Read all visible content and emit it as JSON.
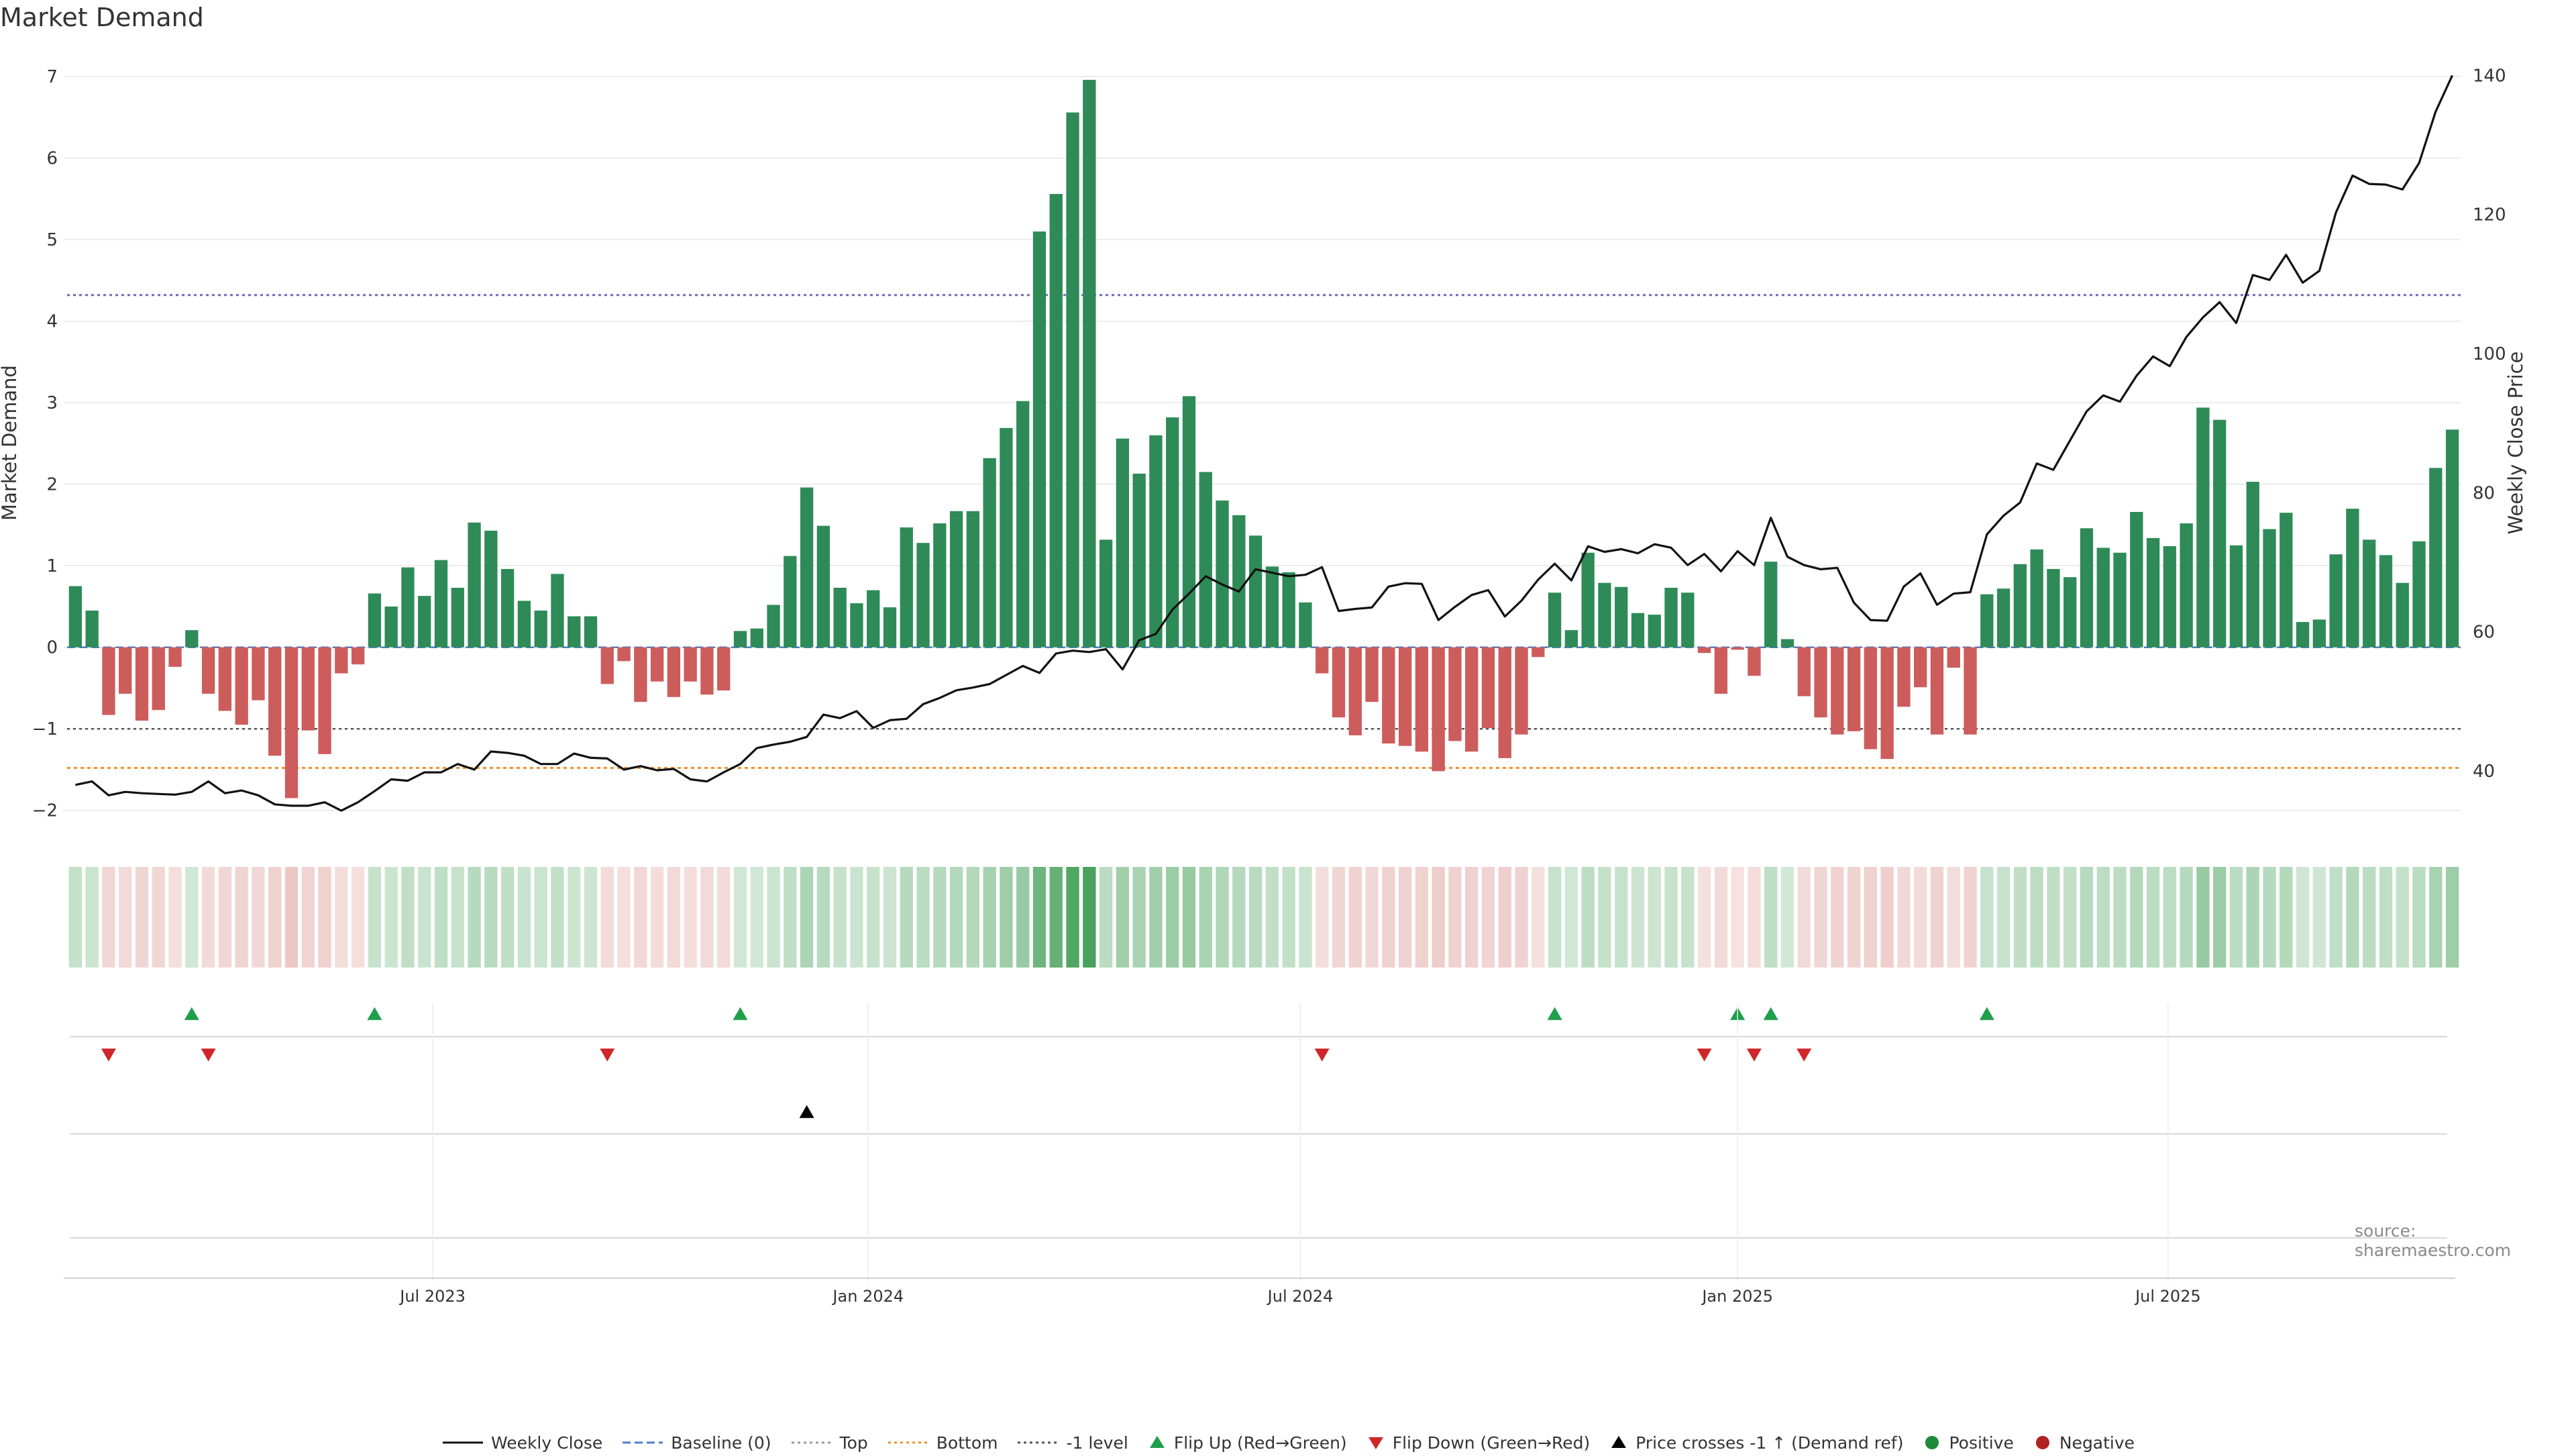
{
  "title": "Market Demand",
  "source": "source: sharemaestro.com",
  "chart_data": {
    "type": "bar",
    "y_left_label": "Market Demand",
    "y_right_label": "Weekly Close Price",
    "y_left_ticks": [
      "−2",
      "−1",
      "0",
      "1",
      "2",
      "3",
      "4",
      "5",
      "6",
      "7"
    ],
    "y_left_tick_values": [
      -2,
      -1,
      0,
      1,
      2,
      3,
      4,
      5,
      6,
      7
    ],
    "y_right_ticks": [
      "40",
      "60",
      "80",
      "100",
      "120",
      "140"
    ],
    "y_right_tick_values": [
      40,
      60,
      80,
      100,
      120,
      140
    ],
    "ylim_left": [
      -2.2,
      7.1
    ],
    "ylim_right": [
      32,
      141
    ],
    "date_ticks": [
      "Jul 2023",
      "Jan 2024",
      "Jul 2024",
      "Jan 2025",
      "Jul 2025"
    ],
    "date_tick_weeks": [
      21.5,
      47.7,
      73.7,
      100.0,
      125.9
    ],
    "reference_lines": {
      "top": 4.32,
      "bottom": -1.48,
      "minus_one": -1.0,
      "baseline": 0
    },
    "demand": [
      0.75,
      0.45,
      -0.83,
      -0.57,
      -0.9,
      -0.77,
      -0.24,
      0.21,
      -0.57,
      -0.78,
      -0.95,
      -0.65,
      -1.33,
      -1.85,
      -1.02,
      -1.31,
      -0.32,
      -0.21,
      0.66,
      0.5,
      0.98,
      0.63,
      1.07,
      0.73,
      1.53,
      1.43,
      0.96,
      0.57,
      0.45,
      0.9,
      0.38,
      0.38,
      -0.45,
      -0.17,
      -0.67,
      -0.42,
      -0.61,
      -0.42,
      -0.58,
      -0.53,
      0.2,
      0.23,
      0.52,
      1.12,
      1.96,
      1.49,
      0.73,
      0.54,
      0.7,
      0.49,
      1.47,
      1.28,
      1.52,
      1.67,
      1.67,
      2.32,
      2.69,
      3.02,
      5.1,
      5.56,
      6.56,
      6.96,
      1.32,
      2.56,
      2.13,
      2.6,
      2.82,
      3.08,
      2.15,
      1.8,
      1.62,
      1.37,
      0.99,
      0.92,
      0.55,
      -0.32,
      -0.86,
      -1.08,
      -0.67,
      -1.18,
      -1.21,
      -1.28,
      -1.52,
      -1.15,
      -1.28,
      -0.99,
      -1.36,
      -1.07,
      -0.12,
      0.67,
      0.21,
      1.16,
      0.79,
      0.74,
      0.42,
      0.4,
      0.73,
      0.67,
      -0.07,
      -0.57,
      -0.03,
      -0.35,
      1.05,
      0.1,
      -0.6,
      -0.86,
      -1.07,
      -1.03,
      -1.25,
      -1.37,
      -0.73,
      -0.49,
      -1.07,
      -0.25,
      -1.07,
      0.65,
      0.72,
      1.02,
      1.2,
      0.96,
      0.86,
      1.46,
      1.22,
      1.16,
      1.66,
      1.34,
      1.24,
      1.52,
      2.94,
      2.79,
      1.25,
      2.03,
      1.45,
      1.65,
      0.31,
      0.34,
      1.14,
      1.7,
      1.32,
      1.13,
      0.79,
      1.3,
      2.2,
      2.67
    ],
    "weekly_close": [
      38,
      38.5,
      36.5,
      37,
      36.8,
      36.7,
      36.6,
      37,
      38.5,
      36.8,
      37.2,
      36.5,
      35.2,
      35,
      35,
      35.5,
      34.3,
      35.5,
      37.1,
      38.8,
      38.6,
      39.8,
      39.8,
      41,
      40.2,
      42.8,
      42.6,
      42.2,
      41,
      41,
      42.5,
      41.9,
      41.8,
      40.2,
      40.7,
      40.1,
      40.3,
      38.8,
      38.5,
      39.8,
      41,
      43.3,
      43.8,
      44.2,
      44.9,
      48.1,
      47.6,
      48.6,
      46.2,
      47.3,
      47.5,
      49.6,
      50.5,
      51.6,
      52,
      52.5,
      53.8,
      55.1,
      54.1,
      56.9,
      57.3,
      57.1,
      57.5,
      54.6,
      58.8,
      59.7,
      63.2,
      65.5,
      68,
      66.8,
      65.8,
      69,
      68.5,
      68,
      68.2,
      69.3,
      63,
      63.3,
      63.5,
      66.5,
      67,
      66.9,
      61.7,
      63.6,
      65.3,
      66,
      62.2,
      64.5,
      67.5,
      69.8,
      67.4,
      72.3,
      71.5,
      71.9,
      71.3,
      72.6,
      72.1,
      69.6,
      71.2,
      68.7,
      71.6,
      69.6,
      76.4,
      70.8,
      69.6,
      69,
      69.2,
      64.2,
      61.7,
      61.6,
      66.5,
      68.4,
      63.9,
      65.5,
      65.7,
      74,
      76.7,
      78.6,
      84.2,
      83.3,
      87.5,
      91.7,
      94,
      93.1,
      96.8,
      99.6,
      98.2,
      102.4,
      105.2,
      107.4,
      104.4,
      111.3,
      110.6,
      114.2,
      110.2,
      111.9,
      120.3,
      125.6,
      124.4,
      124.3,
      123.6,
      127.4,
      134.8,
      140
    ]
  },
  "signal_rows": {
    "flip_up_weeks": [
      7,
      18,
      40,
      89,
      100,
      102,
      115
    ],
    "flip_down_weeks": [
      2,
      8,
      32,
      75,
      98,
      101,
      104
    ],
    "price_cross_weeks": [
      44
    ]
  },
  "legend": [
    {
      "label": "Weekly Close",
      "kind": "line",
      "color": "#111111"
    },
    {
      "label": "Baseline (0)",
      "kind": "dash",
      "color": "#4f7ec7"
    },
    {
      "label": "Top",
      "kind": "dot",
      "color": "#9a9a9a"
    },
    {
      "label": "Bottom",
      "kind": "dot",
      "color": "#f0922d"
    },
    {
      "label": "-1 level",
      "kind": "dot",
      "color": "#555555"
    },
    {
      "label": "Flip Up (Red→Green)",
      "kind": "tri-up",
      "color": "#1f9e4b"
    },
    {
      "label": "Flip Down (Green→Red)",
      "kind": "tri-down",
      "color": "#d0262a"
    },
    {
      "label": "Price crosses -1 ↑ (Demand ref)",
      "kind": "tri-up",
      "color": "#000000"
    },
    {
      "label": "Positive",
      "kind": "circle",
      "color": "#1f8a3a"
    },
    {
      "label": "Negative",
      "kind": "circle",
      "color": "#b02222"
    }
  ],
  "colors": {
    "positive_bar": "#2e8b57",
    "negative_bar": "#cd5c5c",
    "grid": "#e6e6e6",
    "top_line": "#6b6bbf",
    "bottom_line": "#f0922d",
    "minus_one_line": "#555555",
    "heat_positive": "#3a9a4e",
    "heat_negative": "#d07a72"
  }
}
